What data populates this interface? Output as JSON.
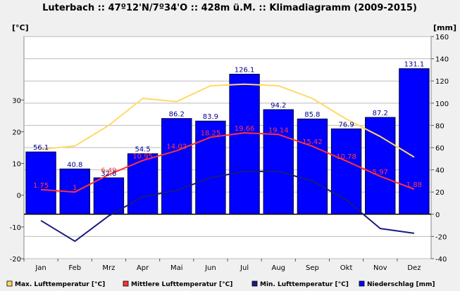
{
  "chart_data": {
    "type": "bar",
    "title": "Luterbach :: 47º12'N/7º34'O :: 428m ü.M. :: Klimadiagramm (2009-2015)",
    "categories": [
      "Jan",
      "Feb",
      "Mrz",
      "Apr",
      "Mai",
      "Jun",
      "Jul",
      "Aug",
      "Sep",
      "Okt",
      "Nov",
      "Dez"
    ],
    "y_left": {
      "unit": "[°C]",
      "ylim": [
        -20,
        50
      ],
      "ticks": [
        -20,
        -10,
        0,
        10,
        20,
        30
      ]
    },
    "y_right": {
      "unit": "[mm]",
      "ylim": [
        -40,
        160
      ],
      "ticks": [
        -40,
        -20,
        0,
        20,
        40,
        60,
        80,
        100,
        120,
        140,
        160
      ]
    },
    "bars": {
      "name": "Niederschlag [mm]",
      "color": "#0000ff",
      "axis": "right",
      "values": [
        56.1,
        40.8,
        32.8,
        54.5,
        86.2,
        83.9,
        126.1,
        94.2,
        85.8,
        76.9,
        87.2,
        131.1
      ],
      "labels": [
        "56.1",
        "40.8",
        "32.8",
        "54.5",
        "86.2",
        "83.9",
        "126.1",
        "94.2",
        "85.8",
        "76.9",
        "87.2",
        "131.1"
      ]
    },
    "series": [
      {
        "name": "Max. Lufttemperatur [°C]",
        "color": "#ffd966",
        "axis": "left",
        "values": [
          14.5,
          15.5,
          22,
          30.5,
          29.5,
          34.5,
          35,
          34.5,
          30.5,
          24,
          18.5,
          12
        ]
      },
      {
        "name": "Mittlere Lufttemperatur [°C]",
        "color": "#ff3333",
        "axis": "left",
        "values": [
          1.75,
          1,
          6.49,
          10.95,
          14.02,
          18.25,
          19.66,
          19.14,
          15.42,
          10.78,
          5.97,
          1.88
        ],
        "labels": [
          "1.75",
          "1",
          "6.49",
          "10.95",
          "14.02",
          "18.25",
          "19.66",
          "19.14",
          "15.42",
          "10.78",
          "5.97",
          "1.88"
        ]
      },
      {
        "name": "Min. Lufttemperatur [°C]",
        "color": "#1a1a80",
        "axis": "left",
        "values": [
          -8,
          -14.5,
          -6.5,
          -0.5,
          1.5,
          5.5,
          7.5,
          7.5,
          4.5,
          -1.5,
          -10.5,
          -12
        ]
      }
    ],
    "legend": [
      {
        "name": "Max. Lufttemperatur [°C]",
        "color": "#ffd966"
      },
      {
        "name": "Mittlere Lufttemperatur [°C]",
        "color": "#ff3333"
      },
      {
        "name": "Min. Lufttemperatur [°C]",
        "color": "#1a1a80"
      },
      {
        "name": "Niederschlag [mm]",
        "color": "#0000ff"
      }
    ],
    "legend_placement": "bottom",
    "grid": true,
    "xlabel": "",
    "ylabel": ""
  }
}
